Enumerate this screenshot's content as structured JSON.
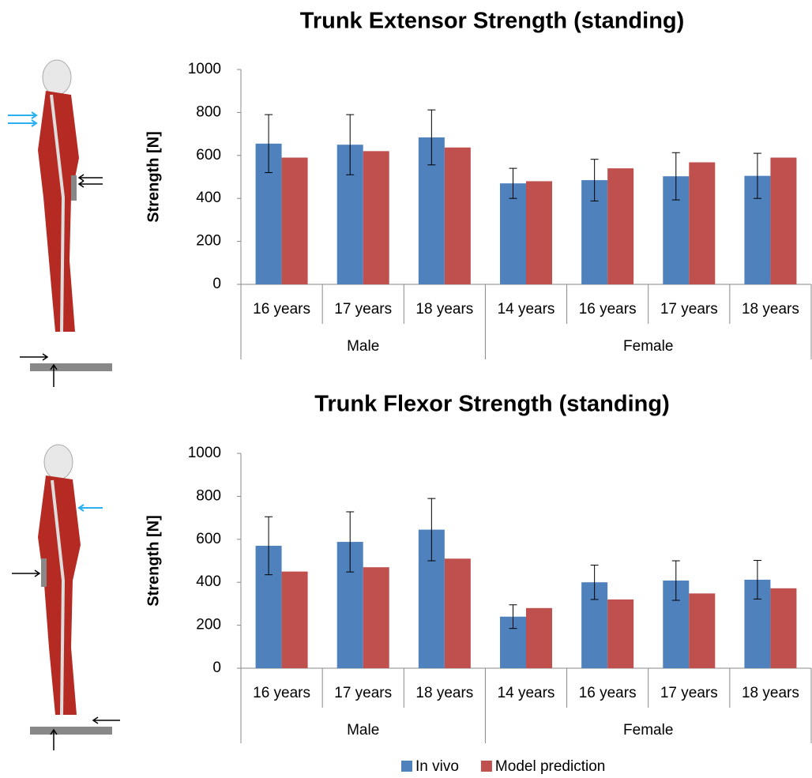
{
  "chart_data": [
    {
      "type": "bar",
      "title": "Trunk Extensor Strength (standing)",
      "ylabel": "Strength [N]",
      "groups": [
        {
          "label": "Male",
          "categories": [
            "16 years",
            "17 years",
            "18 years"
          ]
        },
        {
          "label": "Female",
          "categories": [
            "14 years",
            "16 years",
            "17 years",
            "18 years"
          ]
        }
      ],
      "series": [
        {
          "color": "#4f81bd",
          "values": [
            655,
            650,
            684,
            470,
            485,
            503,
            505
          ],
          "errors": [
            135,
            140,
            128,
            70,
            97,
            110,
            105
          ]
        },
        {
          "color": "#c0504d",
          "values": [
            590,
            620,
            637,
            480,
            540,
            568,
            590
          ]
        }
      ],
      "ylim": [
        0,
        1000
      ],
      "yticks": [
        0,
        200,
        400,
        600,
        800,
        1000
      ]
    },
    {
      "type": "bar",
      "title": "Trunk Flexor Strength (standing)",
      "ylabel": "Strength [N]",
      "groups": [
        {
          "label": "Male",
          "categories": [
            "16 years",
            "17 years",
            "18 years"
          ]
        },
        {
          "label": "Female",
          "categories": [
            "14 years",
            "16 years",
            "17 years",
            "18 years"
          ]
        }
      ],
      "series": [
        {
          "name": "In vivo",
          "color": "#4f81bd",
          "values": [
            570,
            588,
            645,
            240,
            400,
            408,
            412
          ],
          "errors": [
            135,
            140,
            145,
            55,
            80,
            92,
            90
          ]
        },
        {
          "name": "Model prediction",
          "color": "#c0504d",
          "values": [
            450,
            470,
            510,
            280,
            320,
            348,
            372
          ]
        }
      ],
      "ylim": [
        0,
        1000
      ],
      "yticks": [
        0,
        200,
        400,
        600,
        800,
        1000
      ]
    }
  ]
}
